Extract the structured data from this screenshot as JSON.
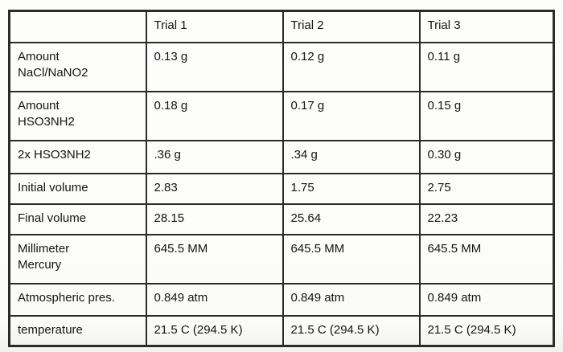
{
  "page": {
    "background": "#fcfcfa"
  },
  "table": {
    "border_color": "#2b2b2b",
    "text_color": "#141414",
    "columns": [
      "",
      "Trial 1",
      "Trial 2",
      "Trial 3"
    ],
    "rows": [
      {
        "label": "Amount\nNaCl/NaNO2",
        "values": [
          "0.13 g",
          "0.12 g",
          "0.11 g"
        ]
      },
      {
        "label": "Amount\nHSO3NH2",
        "values": [
          "0.18 g",
          "0.17 g",
          "0.15 g"
        ]
      },
      {
        "label": "2x HSO3NH2",
        "values": [
          ".36 g",
          ".34 g",
          "0.30 g"
        ]
      },
      {
        "label": "Initial volume",
        "values": [
          "2.83",
          "1.75",
          "2.75"
        ]
      },
      {
        "label": "Final volume",
        "values": [
          "28.15",
          "25.64",
          "22.23"
        ]
      },
      {
        "label": "Millimeter\nMercury",
        "values": [
          "645.5 MM",
          "645.5 MM",
          "645.5 MM"
        ]
      },
      {
        "label": "Atmospheric pres.",
        "values": [
          "0.849 atm",
          "0.849 atm",
          "0.849 atm"
        ]
      },
      {
        "label": "temperature",
        "values": [
          "21.5 C (294.5 K)",
          "21.5 C (294.5 K)",
          "21.5 C (294.5 K)"
        ]
      }
    ]
  }
}
